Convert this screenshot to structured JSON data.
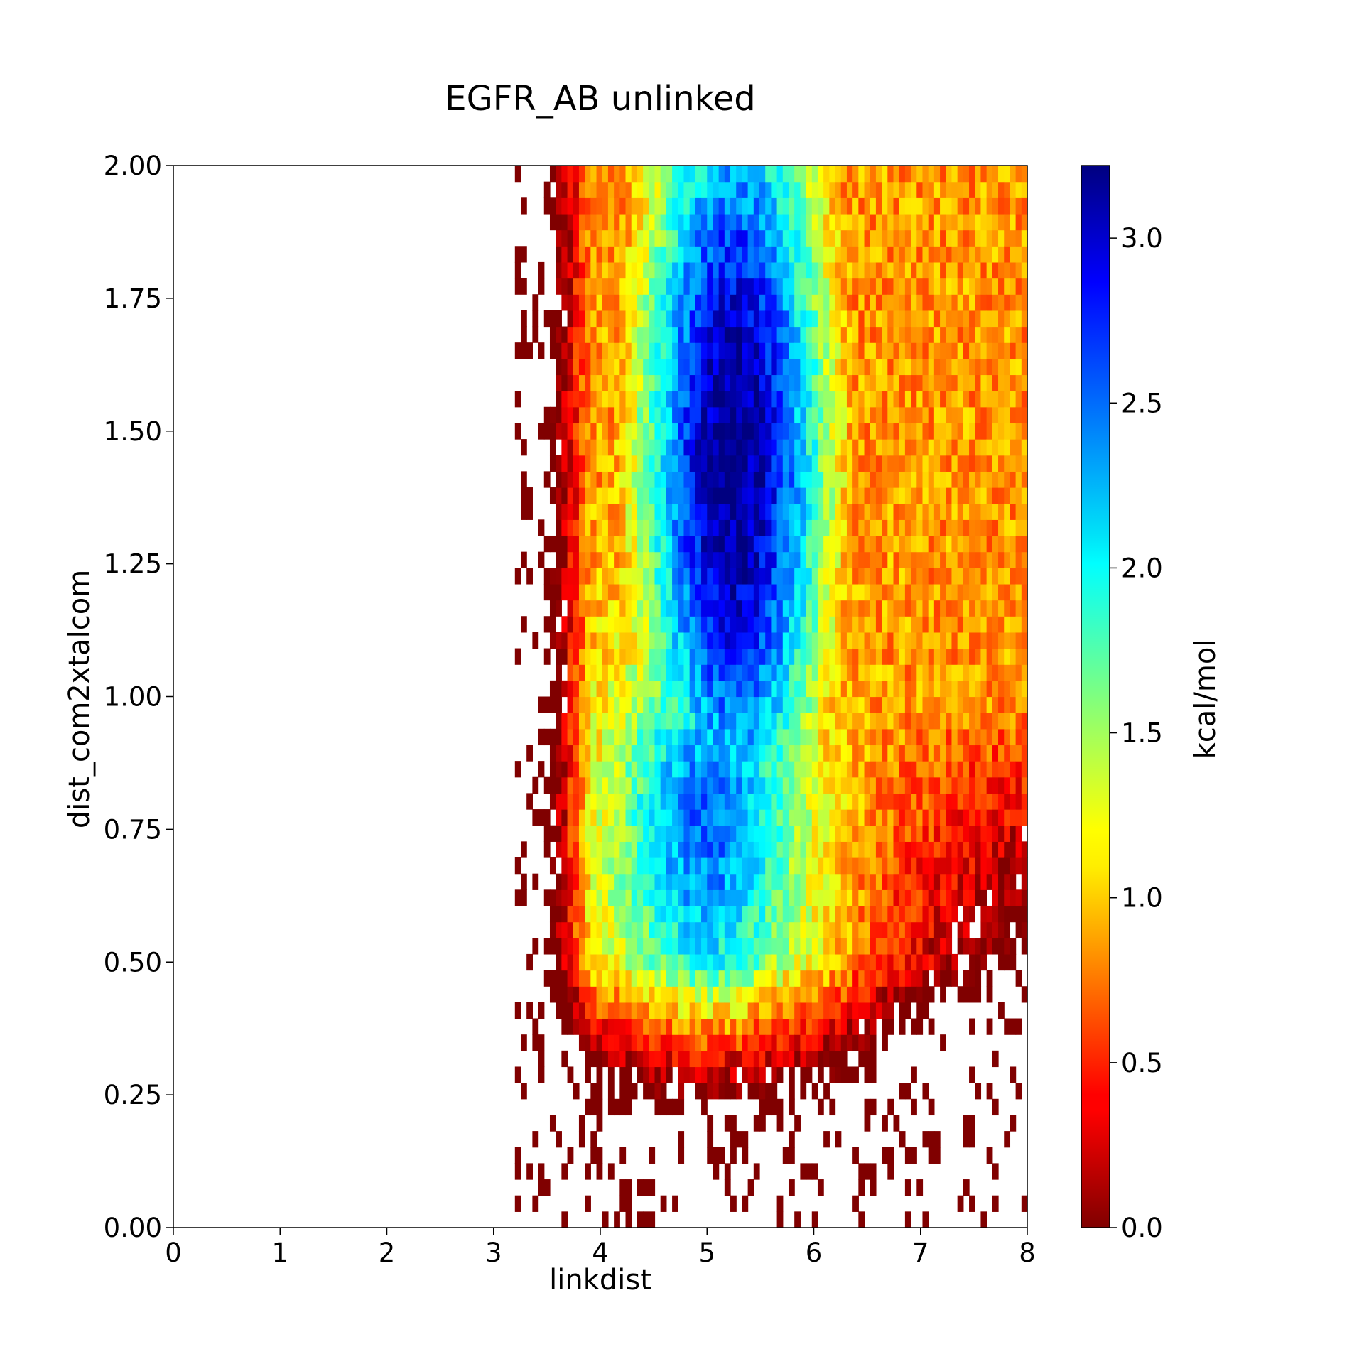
{
  "chart_data": {
    "type": "heatmap",
    "title": "EGFR_AB unlinked",
    "xlabel": "linkdist",
    "ylabel": "dist_com2xtalcom",
    "xlim": [
      0,
      8
    ],
    "ylim": [
      0,
      2
    ],
    "x_ticks": [
      "0",
      "1",
      "2",
      "3",
      "4",
      "5",
      "6",
      "7",
      "8"
    ],
    "y_ticks": [
      "0.00",
      "0.25",
      "0.50",
      "0.75",
      "1.00",
      "1.25",
      "1.50",
      "1.75",
      "2.00"
    ],
    "x_tick_values": [
      0,
      1,
      2,
      3,
      4,
      5,
      6,
      7,
      8
    ],
    "y_tick_values": [
      0,
      0.25,
      0.5,
      0.75,
      1.0,
      1.25,
      1.5,
      1.75,
      2.0
    ],
    "colormap": "jet",
    "colorbar": {
      "label": "kcal/mol",
      "range": [
        0,
        3.22
      ],
      "ticks": [
        "0.0",
        "0.5",
        "1.0",
        "1.5",
        "2.0",
        "2.5",
        "3.0"
      ],
      "tick_values": [
        0,
        0.5,
        1.0,
        1.5,
        2.0,
        2.5,
        3.0
      ]
    },
    "bins": {
      "nx": 88,
      "ny": 66,
      "x_start": 3.2,
      "x_end": 8.0
    },
    "minimum": {
      "x": 5.25,
      "y": 1.45,
      "value": 0.0
    }
  }
}
